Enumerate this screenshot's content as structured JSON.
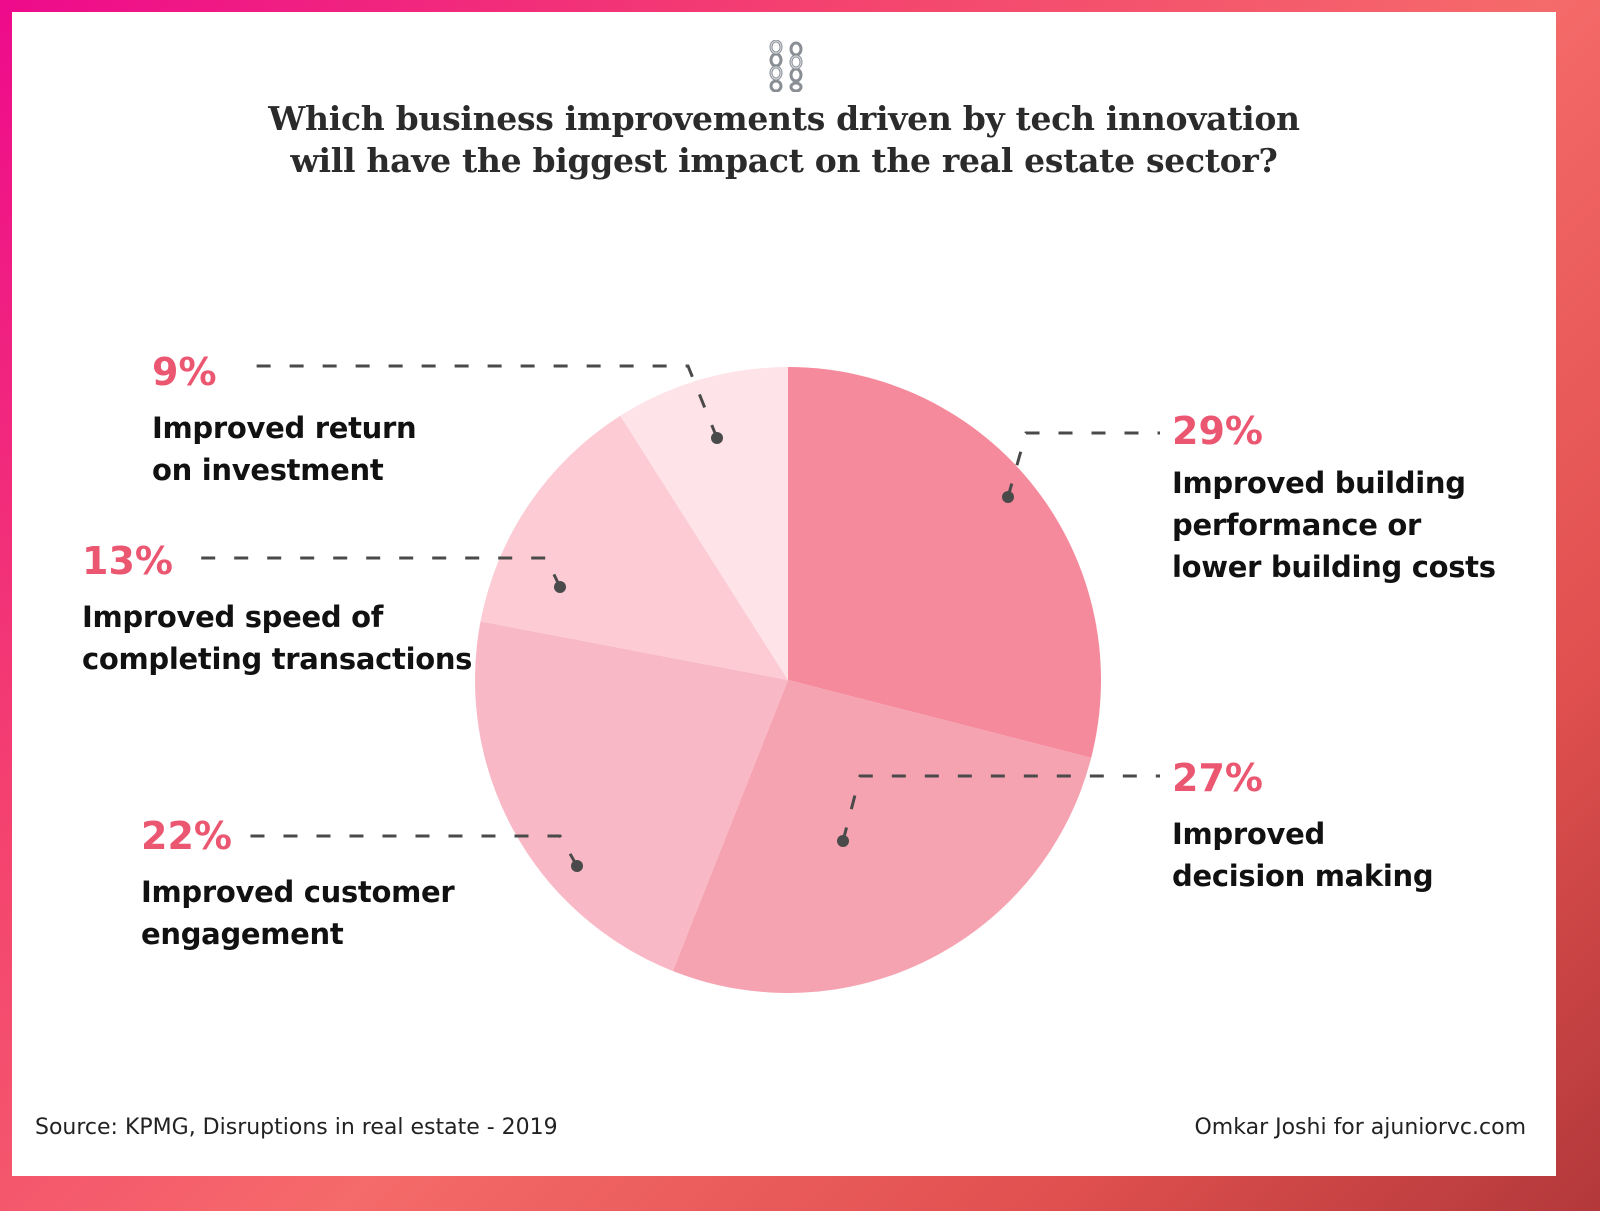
{
  "title_lines": [
    "Which business improvements driven by tech innovation",
    "will have the biggest impact on the real estate sector?"
  ],
  "header_icon": "chain-icon",
  "colors": {
    "accent": "#eb5670",
    "slices": [
      "#f48a9c",
      "#f6a3b1",
      "#f9b8c5",
      "#fccbd4",
      "#fee3e8"
    ],
    "leader": "#4a4a4a"
  },
  "chart_data": {
    "type": "pie",
    "title": "Which business improvements driven by tech innovation will have the biggest impact on the real estate sector?",
    "start_angle": "top, clockwise",
    "slices": [
      {
        "label": "Improved building performance or lower building costs",
        "value": 29,
        "display": "29%",
        "lines": [
          "Improved building",
          "performance or",
          "lower building costs"
        ]
      },
      {
        "label": "Improved decision making",
        "value": 27,
        "display": "27%",
        "lines": [
          "Improved",
          "decision making"
        ]
      },
      {
        "label": "Improved customer engagement",
        "value": 22,
        "display": "22%",
        "lines": [
          "Improved customer",
          "engagement"
        ]
      },
      {
        "label": "Improved speed of completing transactions",
        "value": 13,
        "display": "13%",
        "lines": [
          "Improved speed of",
          "completing transactions"
        ]
      },
      {
        "label": "Improved return on investment",
        "value": 9,
        "display": "9%",
        "lines": [
          "Improved return",
          "on investment"
        ]
      }
    ],
    "units": "%"
  },
  "footer": {
    "source": "Source: KPMG, Disruptions in real estate - 2019",
    "credit": "Omkar Joshi for ajuniorvc.com"
  }
}
